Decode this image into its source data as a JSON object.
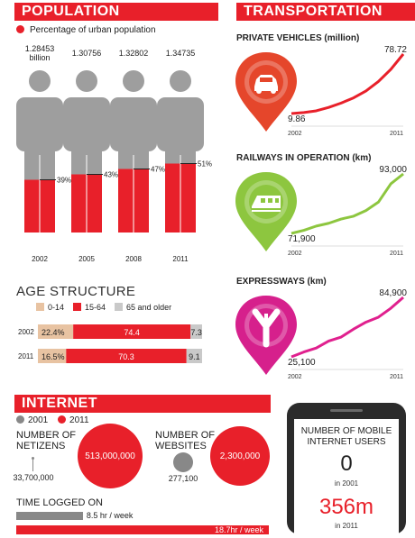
{
  "population": {
    "title": "POPULATION",
    "legend_label": "Percentage of urban population",
    "accent": "#e8202a",
    "body_color": "#9e9e9e"
  },
  "transportation": {
    "title": "TRANSPORTATION",
    "icons": [
      "car-icon",
      "train-icon",
      "highway-icon"
    ],
    "icon_colors": [
      "#e5462b",
      "#8dc63f",
      "#d6208c"
    ]
  },
  "age_structure": {
    "title": "AGE STRUCTURE",
    "colors": [
      "#e8c3a2",
      "#e8202a",
      "#c9c9c9"
    ]
  },
  "internet": {
    "title": "INTERNET",
    "legend": [
      {
        "label": "2001",
        "color": "#888888"
      },
      {
        "label": "2011",
        "color": "#e8202a"
      }
    ],
    "netizens_label": "NUMBER OF NETIZENS",
    "netizens_2001": "33,700,000",
    "netizens_2011": "513,000,000",
    "websites_label": "NUMBER OF WEBSITES",
    "websites_2001": "277,100",
    "websites_2011": "2,300,000",
    "time_label": "TIME LOGGED ON",
    "time_2001_label": "8.5 hr / week",
    "time_2011_label": "18.7hr / week",
    "time_2001_value": 8.5,
    "time_2011_value": 18.7
  },
  "mobile": {
    "title": "NUMBER OF MOBILE INTERNET USERS",
    "value_2001": "0",
    "year_2001": "in 2001",
    "value_2011": "356m",
    "year_2011": "in 2011"
  },
  "chart_data": [
    {
      "type": "bar",
      "title": "POPULATION",
      "categories": [
        "2002",
        "2005",
        "2008",
        "2011"
      ],
      "population_labels": [
        "1.28453 billion",
        "1.30756",
        "1.32802",
        "1.34735"
      ],
      "series": [
        {
          "name": "Percentage of urban population",
          "values": [
            39,
            43,
            47,
            51
          ]
        }
      ],
      "value_labels": [
        "39%",
        "43%",
        "47%",
        "51%"
      ],
      "ylim": [
        0,
        100
      ]
    },
    {
      "type": "line",
      "title": "PRIVATE VEHICLES (million)",
      "x": [
        "2002",
        "",
        "",
        "",
        "",
        "",
        "",
        "",
        "",
        "2011"
      ],
      "values": [
        9.86,
        11,
        13,
        17,
        22,
        28,
        36,
        47,
        61,
        78.72
      ],
      "start_label": "9.86",
      "end_label": "78.72",
      "xlabel_start": "2002",
      "xlabel_end": "2011",
      "color": "#e8202a"
    },
    {
      "type": "line",
      "title": "RAILWAYS IN OPERATION (km)",
      "x": [
        "2002",
        "",
        "",
        "",
        "",
        "",
        "",
        "",
        "",
        "2011"
      ],
      "values": [
        71900,
        73000,
        74500,
        75500,
        77000,
        78000,
        80000,
        83000,
        89500,
        93000
      ],
      "start_label": "71,900",
      "end_label": "93,000",
      "xlabel_start": "2002",
      "xlabel_end": "2011",
      "color": "#8dc63f"
    },
    {
      "type": "line",
      "title": "EXPRESSWAYS (km)",
      "x": [
        "2002",
        "",
        "",
        "",
        "",
        "",
        "",
        "",
        "",
        "2011"
      ],
      "values": [
        25100,
        30000,
        34000,
        41000,
        45000,
        53000,
        60000,
        65000,
        74000,
        84900
      ],
      "start_label": "25,100",
      "end_label": "84,900",
      "xlabel_start": "2002",
      "xlabel_end": "2011",
      "color": "#e0208e"
    },
    {
      "type": "bar",
      "title": "AGE STRUCTURE",
      "categories": [
        "2002",
        "2011"
      ],
      "series": [
        {
          "name": "0-14",
          "values": [
            22.4,
            16.5
          ],
          "labels": [
            "22.4%",
            "16.5%"
          ]
        },
        {
          "name": "15-64",
          "values": [
            74.4,
            70.3
          ],
          "labels": [
            "74.4",
            "70.3"
          ]
        },
        {
          "name": "65 and older",
          "values": [
            7.3,
            9.1
          ],
          "labels": [
            "7.3",
            "9.1"
          ]
        }
      ],
      "stacked": true,
      "orientation": "horizontal"
    }
  ]
}
